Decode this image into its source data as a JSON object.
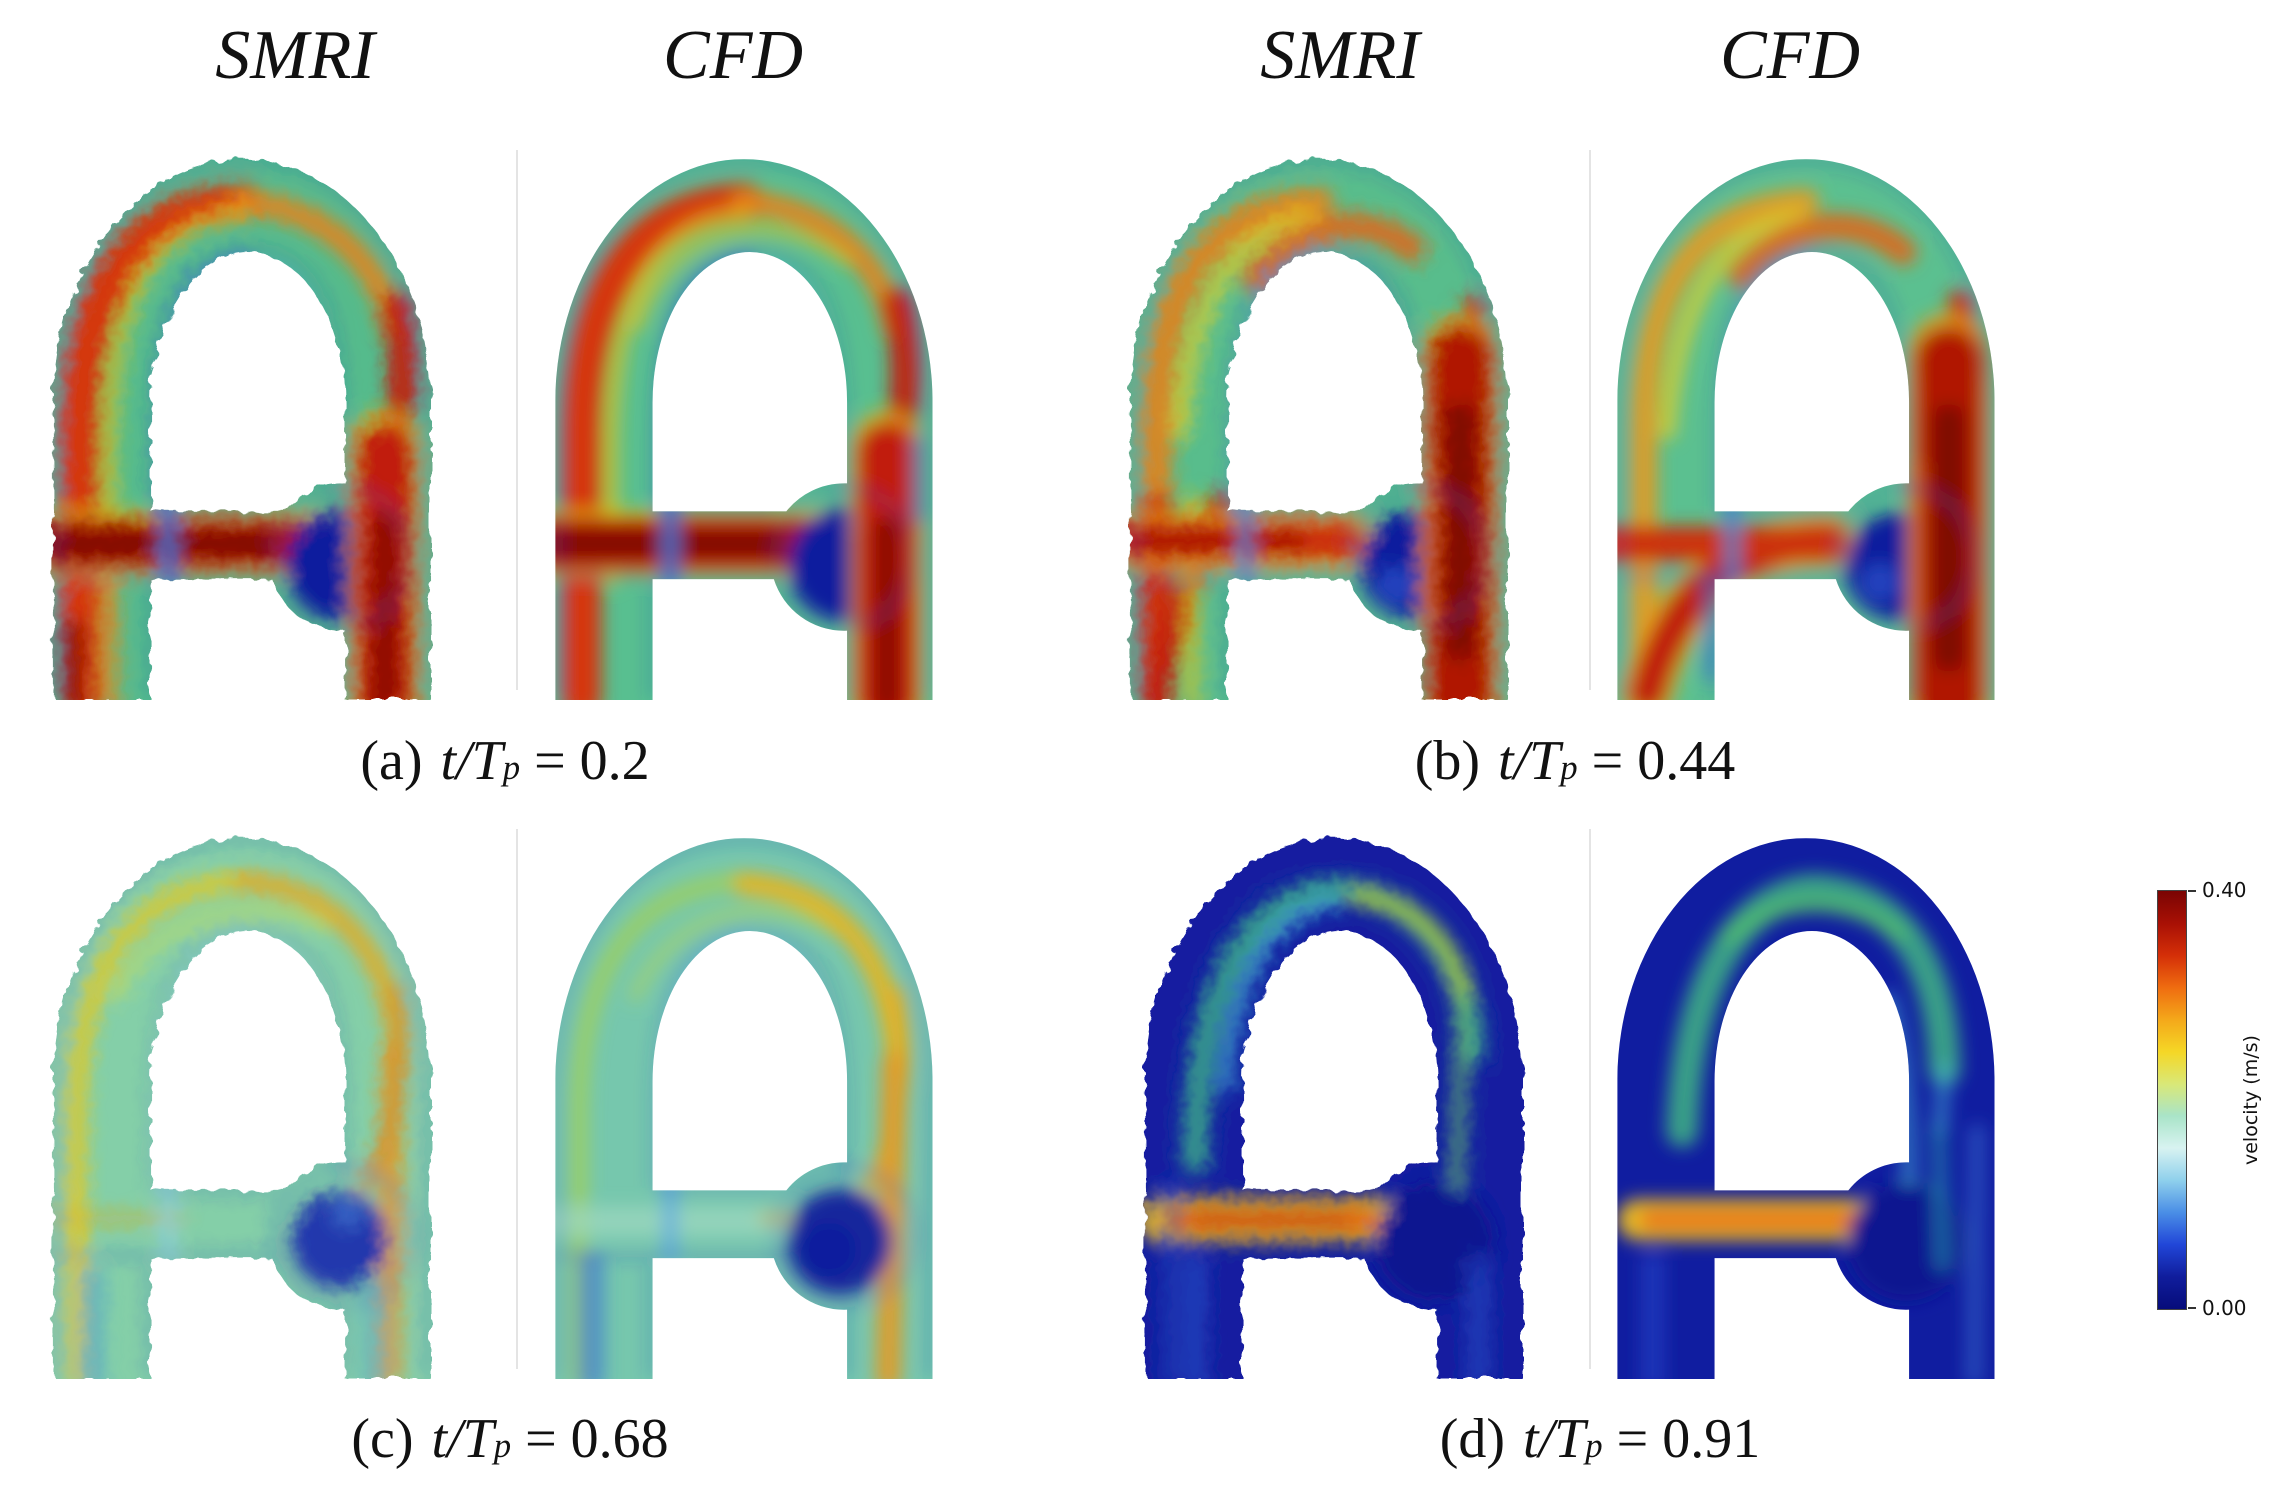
{
  "header": {
    "columns": [
      {
        "label": "SMRI"
      },
      {
        "label": "CFD"
      },
      {
        "label": "SMRI"
      },
      {
        "label": "CFD"
      }
    ]
  },
  "captions": {
    "a": {
      "index": "(a)",
      "variable": "t/T",
      "subscript": "p",
      "rhs": "= 0.2"
    },
    "b": {
      "index": "(b)",
      "variable": "t/T",
      "subscript": "p",
      "rhs": "= 0.44"
    },
    "c": {
      "index": "(c)",
      "variable": "t/T",
      "subscript": "p",
      "rhs": "= 0.68"
    },
    "d": {
      "index": "(d)",
      "variable": "t/T",
      "subscript": "p",
      "rhs": "= 0.91"
    }
  },
  "panels": [
    {
      "group": "a",
      "method": "SMRI"
    },
    {
      "group": "a",
      "method": "CFD"
    },
    {
      "group": "b",
      "method": "SMRI"
    },
    {
      "group": "b",
      "method": "CFD"
    },
    {
      "group": "c",
      "method": "SMRI"
    },
    {
      "group": "c",
      "method": "CFD"
    },
    {
      "group": "d",
      "method": "SMRI"
    },
    {
      "group": "d",
      "method": "CFD"
    }
  ],
  "colorbar": {
    "max_label": "0.40",
    "min_label": "0.00",
    "axis_label": "velocity (m/s)",
    "min_value": 0.0,
    "max_value": 0.4,
    "gradient_top_to_bottom": [
      "#7a0403",
      "#a81005",
      "#d42f08",
      "#ef6c10",
      "#f4a81a",
      "#f5d726",
      "#d9e878",
      "#a9e4c8",
      "#d8f3f1",
      "#8fd0ec",
      "#4a8ee6",
      "#2146d8",
      "#101d9c",
      "#060c7a"
    ]
  }
}
